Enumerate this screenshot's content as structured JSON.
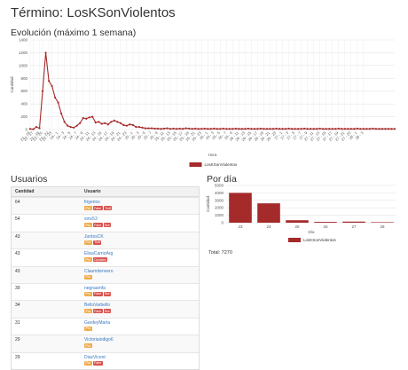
{
  "page_title": "Término: LosKSonViolentos",
  "evolution": {
    "title": "Evolución (máximo 1 semana)"
  },
  "users": {
    "title": "Usuarios",
    "headers": [
      "Cantidad",
      "Usuario"
    ],
    "rows": [
      {
        "count": "64",
        "user": "frigerios",
        "badges": [
          "Pro",
          "Fake",
          "Troll"
        ]
      },
      {
        "count": "54",
        "user": "smv53",
        "badges": [
          "Pro",
          "Fake",
          "Bot"
        ]
      },
      {
        "count": "43",
        "user": "JuntosCK",
        "badges": [
          "Pro",
          "Troll"
        ]
      },
      {
        "count": "43",
        "user": "ElisaCarrioArg",
        "badges": [
          "Pro",
          "Opositor"
        ]
      },
      {
        "count": "43",
        "user": "Claumdenvero",
        "badges": [
          "Pro"
        ]
      },
      {
        "count": "39",
        "user": "negraamfa",
        "badges": [
          "Pro",
          "Fake",
          "Bot"
        ]
      },
      {
        "count": "34",
        "user": "BelloVarbello",
        "badges": [
          "Pro",
          "Fake",
          "Bot"
        ]
      },
      {
        "count": "31",
        "user": "GardeyMarta",
        "badges": [
          "Pro"
        ]
      },
      {
        "count": "29",
        "user": "Victoriaindigo6",
        "badges": [
          "Pro"
        ]
      },
      {
        "count": "29",
        "user": "DiazVicent",
        "badges": [
          "Pro",
          "Fake"
        ]
      }
    ],
    "badge_colors": {
      "Pro": "#f0ad4e",
      "Fake": "#d9534f",
      "Troll": "#d9534f",
      "Bot": "#d9534f",
      "Opositor": "#d9534f"
    }
  },
  "per_day": {
    "title": "Por día",
    "total": "Total: 7270"
  },
  "chart_data": [
    {
      "type": "line",
      "title": "",
      "xlabel": "Hora",
      "ylabel": "Cantidad",
      "ylim": [
        0,
        1400
      ],
      "yticks": [
        0,
        200,
        400,
        600,
        800,
        1000,
        1200,
        1400
      ],
      "x": [
        "23 - 16",
        "23 - 17",
        "23 - 18",
        "23 - 19",
        "23 - 20",
        "23 - 21",
        "23 - 22",
        "23 - 23",
        "24 - 0",
        "24 - 1",
        "24 - 2",
        "24 - 3",
        "24 - 4",
        "24 - 5",
        "24 - 6",
        "24 - 7",
        "24 - 8",
        "24 - 9",
        "24 - 10",
        "24 - 11",
        "24 - 12",
        "24 - 13",
        "24 - 14",
        "24 - 15",
        "24 - 16",
        "24 - 17",
        "24 - 18",
        "24 - 19",
        "24 - 20",
        "24 - 21",
        "24 - 22",
        "24 - 23",
        "25 - 0",
        "25 - 1",
        "25 - 2",
        "25 - 3",
        "25 - 4",
        "25 - 5",
        "25 - 6",
        "25 - 7",
        "25 - 8",
        "25 - 9",
        "25 - 10",
        "25 - 11",
        "25 - 12",
        "25 - 13",
        "25 - 14",
        "25 - 15",
        "25 - 16",
        "25 - 17",
        "25 - 18",
        "25 - 19",
        "25 - 20",
        "25 - 21",
        "25 - 22",
        "25 - 23",
        "26 - 0",
        "26 - 1",
        "26 - 2",
        "26 - 3",
        "26 - 4",
        "26 - 5",
        "26 - 6",
        "26 - 7",
        "26 - 8",
        "26 - 9",
        "26 - 10",
        "26 - 11",
        "26 - 12",
        "26 - 13",
        "26 - 14",
        "26 - 15",
        "26 - 16",
        "26 - 17",
        "26 - 18",
        "26 - 19",
        "26 - 20",
        "26 - 21",
        "26 - 22",
        "26 - 23",
        "27 - 0",
        "27 - 1",
        "27 - 2",
        "27 - 3",
        "27 - 4",
        "27 - 5",
        "27 - 6",
        "27 - 7",
        "27 - 8",
        "27 - 9",
        "27 - 10",
        "27 - 11",
        "27 - 12",
        "27 - 13",
        "27 - 14",
        "27 - 15",
        "27 - 16",
        "27 - 17",
        "27 - 18",
        "27 - 19",
        "27 - 20",
        "27 - 21",
        "27 - 22",
        "27 - 23",
        "28 - 0",
        "28 - 1",
        "28 - 2",
        "28 - 3",
        "28 - 4",
        "28 - 5",
        "28 - 6",
        "28 - 7",
        "28 - 8",
        "28 - 9",
        "28 - 10",
        "28 - 11",
        "28 - 12",
        "28 - 13"
      ],
      "x_tick_labels": [
        "23 - 16",
        "23 - 17",
        "23 - 19",
        "23 - 20",
        "23 - 22",
        "23 - 23",
        "24 - 1",
        "24 - 3",
        "24 - 5",
        "24 - 7",
        "24 - 9",
        "24 - 11",
        "24 - 13",
        "24 - 15",
        "24 - 17",
        "24 - 19",
        "24 - 21",
        "24 - 23",
        "25 - 1",
        "25 - 3",
        "25 - 5",
        "25 - 7",
        "25 - 9",
        "25 - 11",
        "25 - 13",
        "25 - 15",
        "25 - 17",
        "25 - 19",
        "25 - 21",
        "25 - 23",
        "26 - 1",
        "26 - 3",
        "26 - 5",
        "26 - 7",
        "26 - 9",
        "26 - 11",
        "26 - 13",
        "26 - 15",
        "26 - 17",
        "26 - 19",
        "26 - 21",
        "26 - 23",
        "27 - 1",
        "27 - 3",
        "27 - 5",
        "27 - 7",
        "27 - 9",
        "27 - 11",
        "27 - 13",
        "27 - 15",
        "27 - 17",
        "27 - 19",
        "27 - 21",
        "27 - 23",
        "28 - 1",
        "28 - 3"
      ],
      "series": [
        {
          "name": "LosKSonViolentos",
          "color": "#a52a2a",
          "values": [
            10,
            5,
            40,
            20,
            600,
            1200,
            760,
            680,
            500,
            420,
            250,
            120,
            60,
            40,
            30,
            60,
            100,
            180,
            170,
            190,
            200,
            110,
            120,
            90,
            100,
            80,
            120,
            140,
            120,
            100,
            70,
            60,
            80,
            70,
            40,
            40,
            30,
            20,
            20,
            20,
            15,
            15,
            10,
            15,
            20,
            10,
            15,
            10,
            15,
            10,
            20,
            15,
            10,
            15,
            10,
            10,
            15,
            10,
            10,
            15,
            10,
            10,
            15,
            10,
            10,
            10,
            15,
            10,
            10,
            10,
            15,
            10,
            10,
            10,
            15,
            10,
            10,
            10,
            10,
            15,
            10,
            10,
            10,
            15,
            10,
            10,
            10,
            10,
            15,
            10,
            10,
            10,
            10,
            15,
            10,
            10,
            10,
            10,
            10,
            15,
            10,
            10,
            10,
            10,
            10,
            15,
            10,
            10,
            10,
            10,
            15,
            10,
            10,
            10,
            10,
            10,
            10,
            10
          ]
        }
      ],
      "legend": "bottom-center",
      "grid": true
    },
    {
      "type": "bar",
      "title": "",
      "xlabel": "Día",
      "ylabel": "Cantidad",
      "categories": [
        "23",
        "24",
        "25",
        "26",
        "27",
        "28"
      ],
      "ylim": [
        0,
        5000
      ],
      "yticks": [
        0,
        1000,
        2000,
        3000,
        4000,
        5000
      ],
      "series": [
        {
          "name": "LosKSonViolentos",
          "color": "#a52a2a",
          "values": [
            4000,
            2600,
            330,
            110,
            150,
            70
          ]
        }
      ],
      "legend": "bottom-center",
      "grid": true
    }
  ]
}
